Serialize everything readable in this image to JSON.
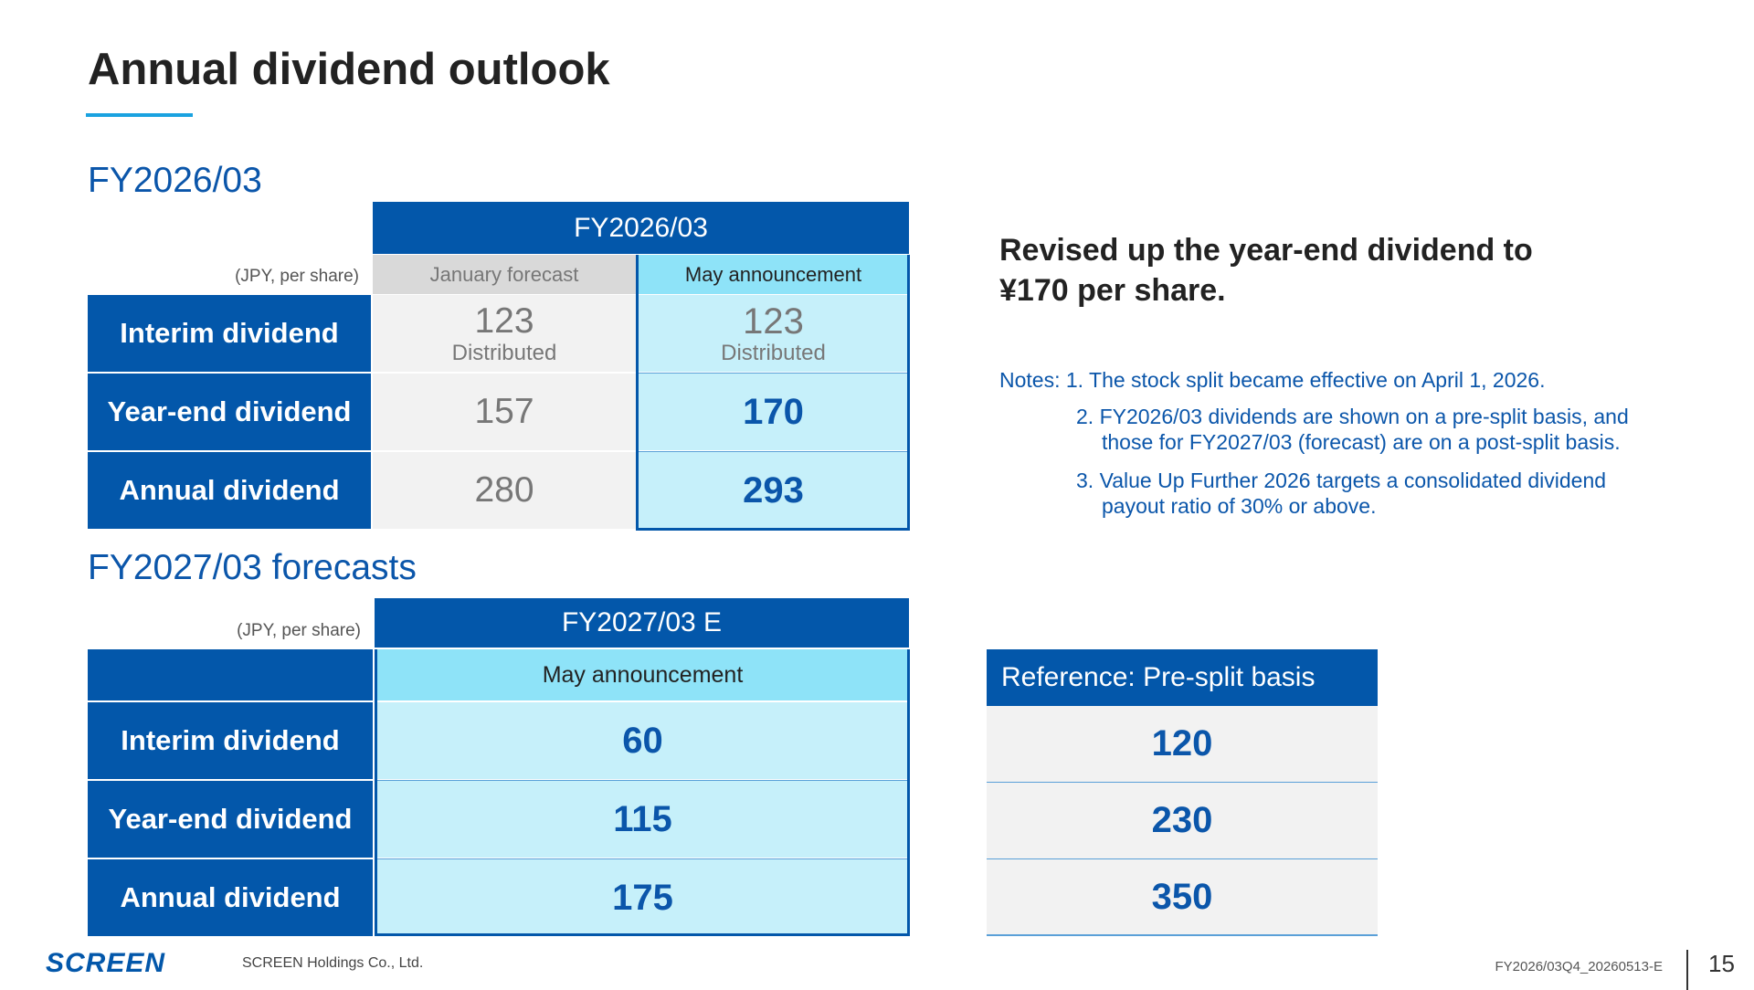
{
  "title": "Annual dividend outlook",
  "fy2026": {
    "section_title": "FY2026/03",
    "unit": "(JPY, per share)",
    "header": "FY2026/03",
    "col_jan": "January forecast",
    "col_may": "May announcement",
    "rows": [
      {
        "label": "Interim dividend",
        "jan": "123",
        "jan_sub": "Distributed",
        "may": "123",
        "may_sub": "Distributed"
      },
      {
        "label": "Year-end dividend",
        "jan": "157",
        "may": "170"
      },
      {
        "label": "Annual dividend",
        "jan": "280",
        "may": "293"
      }
    ]
  },
  "fy2027": {
    "section_title": "FY2027/03 forecasts",
    "unit": "(JPY, per share)",
    "header": "FY2027/03 E",
    "col_may": "May announcement",
    "rows": [
      {
        "label": "Interim dividend",
        "may": "60"
      },
      {
        "label": "Year-end dividend",
        "may": "115"
      },
      {
        "label": "Annual dividend",
        "may": "175"
      }
    ]
  },
  "reference": {
    "header": "Reference: Pre-split basis",
    "values": [
      "120",
      "230",
      "350"
    ]
  },
  "headline": "Revised up the year-end dividend to ¥170 per share.",
  "notes": {
    "n1": "Notes: 1. The stock split became effective on April 1, 2026.",
    "n2a": "2. FY2026/03 dividends are shown on a pre-split basis, and",
    "n2b": "those for FY2027/03 (forecast) are on a post-split basis.",
    "n3a": "3. Value Up Further 2026 targets a consolidated dividend",
    "n3b": "payout ratio of 30% or above."
  },
  "footer": {
    "logo": "SCREEN",
    "company": "SCREEN Holdings Co., Ltd.",
    "doc_code": "FY2026/03Q4_20260513-E",
    "page": "15"
  },
  "colors": {
    "primary": "#0357aa",
    "accent_line": "#1aa2e0",
    "cyan_header": "#8ee3f8",
    "cyan_cell": "#c6f0fa",
    "gray_cell": "#f2f2f2"
  }
}
